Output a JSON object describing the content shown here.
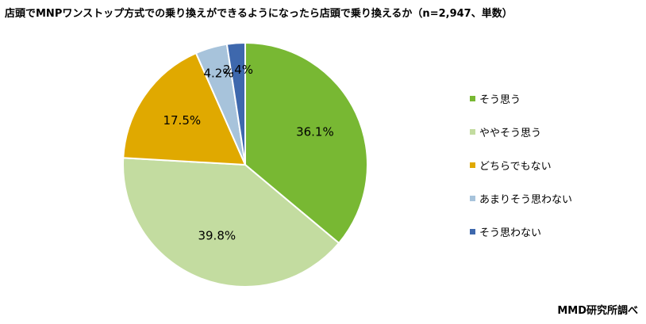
{
  "title": "店頭でMNPワンストップ方式での乗り換えができるようになったら店頭で乗り換えるか（n=2,947、単数）",
  "source": "MMD研究所調べ",
  "chart_data": {
    "type": "pie",
    "title": "店頭でMNPワンストップ方式での乗り換えができるようになったら店頭で乗り換えるか（n=2,947、単数）",
    "legend_position": "right",
    "slices": [
      {
        "label": "そう思う",
        "value": 36.1,
        "display": "36.1%",
        "color": "#78b833"
      },
      {
        "label": "ややそう思う",
        "value": 39.8,
        "display": "39.8%",
        "color": "#c3dca0"
      },
      {
        "label": "どちらでもない",
        "value": 17.5,
        "display": "17.5%",
        "color": "#e0a900"
      },
      {
        "label": "あまりそう思わない",
        "value": 4.2,
        "display": "4.2%",
        "color": "#a7c3db"
      },
      {
        "label": "そう思わない",
        "value": 2.4,
        "display": "2.4%",
        "color": "#3e68ad"
      }
    ]
  }
}
